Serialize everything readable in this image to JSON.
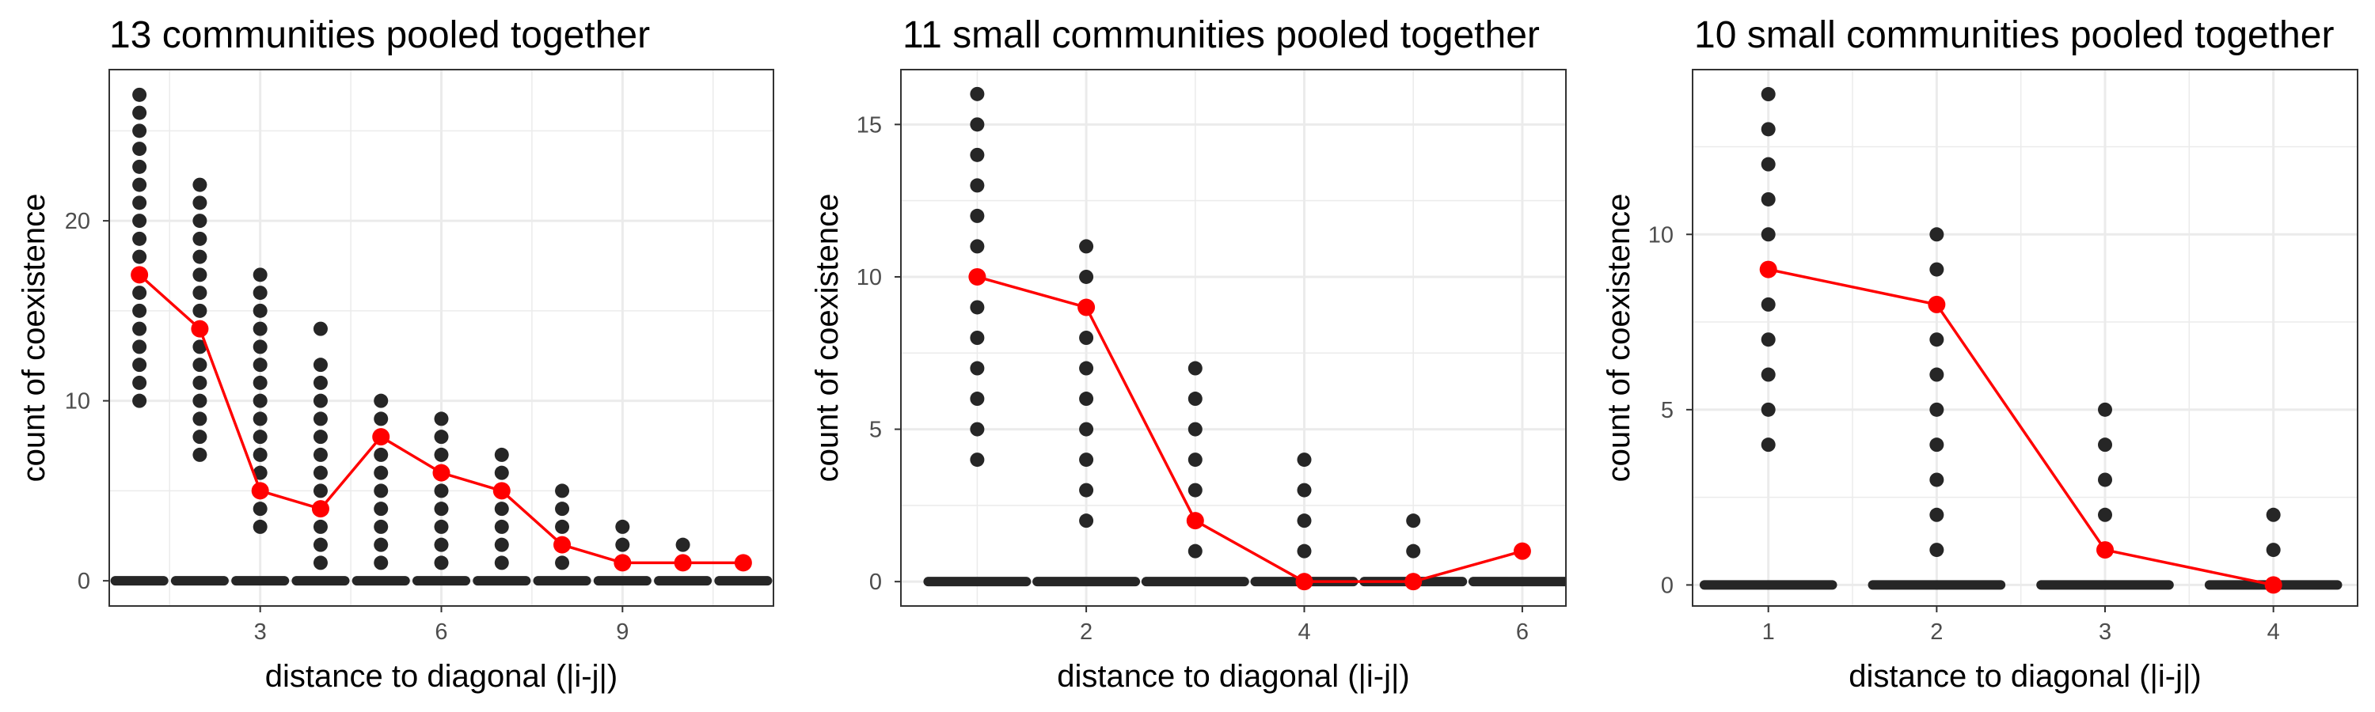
{
  "chart_data": [
    {
      "type": "scatter",
      "title": "13 communities pooled together",
      "xlabel": "distance to diagonal (|i-j|)",
      "ylabel": "count of coexistence",
      "xlim": [
        0.5,
        11.5
      ],
      "ylim": [
        -1.4,
        28.4
      ],
      "x_ticks": [
        3,
        6,
        9
      ],
      "y_ticks": [
        0,
        10,
        20
      ],
      "grid": true,
      "zero_row_width": 0.4,
      "points": [
        {
          "x": 1,
          "values": [
            10,
            11,
            12,
            13,
            14,
            15,
            16,
            17,
            18,
            19,
            20,
            21,
            22,
            23,
            24,
            25,
            26,
            27
          ]
        },
        {
          "x": 2,
          "values": [
            7,
            8,
            9,
            10,
            11,
            12,
            13,
            14,
            15,
            16,
            17,
            18,
            19,
            20,
            21,
            22
          ]
        },
        {
          "x": 3,
          "values": [
            3,
            4,
            5,
            6,
            7,
            8,
            9,
            10,
            11,
            12,
            13,
            14,
            15,
            16,
            17
          ]
        },
        {
          "x": 4,
          "values": [
            1,
            2,
            3,
            4,
            5,
            6,
            7,
            8,
            9,
            10,
            11,
            12,
            14
          ]
        },
        {
          "x": 5,
          "values": [
            1,
            2,
            3,
            4,
            5,
            6,
            7,
            8,
            9,
            10
          ]
        },
        {
          "x": 6,
          "values": [
            1,
            2,
            3,
            4,
            5,
            6,
            7,
            8,
            9
          ]
        },
        {
          "x": 7,
          "values": [
            1,
            2,
            3,
            4,
            5,
            6,
            7
          ]
        },
        {
          "x": 8,
          "values": [
            1,
            2,
            3,
            4,
            5
          ]
        },
        {
          "x": 9,
          "values": [
            1,
            2,
            3
          ]
        },
        {
          "x": 10,
          "values": [
            1,
            2
          ]
        },
        {
          "x": 11,
          "values": []
        }
      ],
      "zero_counts": [
        1,
        2,
        3,
        4,
        5,
        6,
        7,
        8,
        9,
        10,
        11
      ],
      "summary_line": {
        "x": [
          1,
          2,
          3,
          4,
          5,
          6,
          7,
          8,
          9,
          10,
          11
        ],
        "y": [
          17,
          14,
          5,
          4,
          8,
          6,
          5,
          2,
          1,
          1,
          1
        ]
      },
      "colors": {
        "points": "#262626",
        "summary": "#ff0000"
      }
    },
    {
      "type": "scatter",
      "title": "11 small communities pooled together",
      "xlabel": "distance to diagonal (|i-j|)",
      "ylabel": "count of coexistence",
      "xlim": [
        0.3,
        6.4
      ],
      "ylim": [
        -0.8,
        16.8
      ],
      "x_ticks": [
        2,
        4,
        6
      ],
      "y_ticks": [
        0,
        5,
        10,
        15
      ],
      "grid": true,
      "zero_row_width": 0.45,
      "points": [
        {
          "x": 1,
          "values": [
            4,
            5,
            6,
            7,
            8,
            9,
            10,
            11,
            12,
            13,
            14,
            15,
            16
          ]
        },
        {
          "x": 2,
          "values": [
            2,
            3,
            4,
            5,
            6,
            7,
            8,
            9,
            10,
            11
          ]
        },
        {
          "x": 3,
          "values": [
            1,
            2,
            3,
            4,
            5,
            6,
            7
          ]
        },
        {
          "x": 4,
          "values": [
            1,
            2,
            3,
            4
          ]
        },
        {
          "x": 5,
          "values": [
            1,
            2
          ]
        },
        {
          "x": 6,
          "values": []
        }
      ],
      "zero_counts": [
        1,
        2,
        3,
        4,
        5,
        6
      ],
      "summary_line": {
        "x": [
          1,
          2,
          3,
          4,
          5,
          6
        ],
        "y": [
          10,
          9,
          2,
          0,
          0,
          1
        ]
      },
      "colors": {
        "points": "#262626",
        "summary": "#ff0000"
      }
    },
    {
      "type": "scatter",
      "title": "10 small communities pooled together",
      "xlabel": "distance to diagonal (|i-j|)",
      "ylabel": "count of coexistence",
      "xlim": [
        0.55,
        4.5
      ],
      "ylim": [
        -0.6,
        14.7
      ],
      "x_ticks": [
        1,
        2,
        3,
        4
      ],
      "y_ticks": [
        0,
        5,
        10
      ],
      "grid": true,
      "zero_row_width": 0.38,
      "points": [
        {
          "x": 1,
          "values": [
            4,
            5,
            6,
            7,
            8,
            9,
            10,
            11,
            12,
            13,
            14
          ]
        },
        {
          "x": 2,
          "values": [
            1,
            2,
            3,
            4,
            5,
            6,
            7,
            8,
            9,
            10
          ]
        },
        {
          "x": 3,
          "values": [
            1,
            2,
            3,
            4,
            5
          ]
        },
        {
          "x": 4,
          "values": [
            1,
            2
          ]
        }
      ],
      "zero_counts": [
        1,
        2,
        3,
        4
      ],
      "summary_line": {
        "x": [
          1,
          2,
          3,
          4
        ],
        "y": [
          9,
          8,
          1,
          0
        ]
      },
      "colors": {
        "points": "#262626",
        "summary": "#ff0000"
      }
    }
  ]
}
